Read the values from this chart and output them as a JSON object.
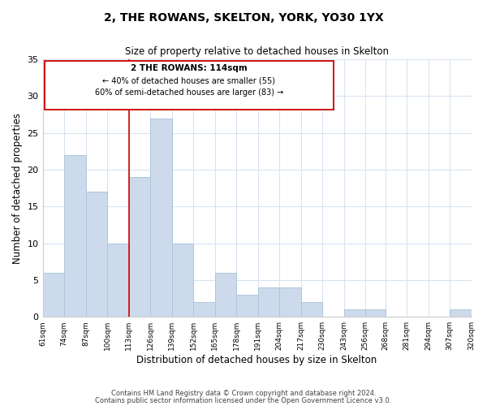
{
  "title": "2, THE ROWANS, SKELTON, YORK, YO30 1YX",
  "subtitle": "Size of property relative to detached houses in Skelton",
  "xlabel": "Distribution of detached houses by size in Skelton",
  "ylabel": "Number of detached properties",
  "bar_edges": [
    61,
    74,
    87,
    100,
    113,
    126,
    139,
    152,
    165,
    178,
    191,
    204,
    217,
    230,
    243,
    256,
    268,
    281,
    294,
    307,
    320
  ],
  "bar_heights": [
    6,
    22,
    17,
    10,
    19,
    27,
    10,
    2,
    6,
    3,
    4,
    4,
    2,
    0,
    1,
    1,
    0,
    0,
    0,
    1
  ],
  "bar_color": "#ccdaeb",
  "bar_edge_color": "#aec6de",
  "vline_x": 113,
  "vline_color": "#cc0000",
  "ylim": [
    0,
    35
  ],
  "yticks": [
    0,
    5,
    10,
    15,
    20,
    25,
    30,
    35
  ],
  "tick_labels": [
    "61sqm",
    "74sqm",
    "87sqm",
    "100sqm",
    "113sqm",
    "126sqm",
    "139sqm",
    "152sqm",
    "165sqm",
    "178sqm",
    "191sqm",
    "204sqm",
    "217sqm",
    "230sqm",
    "243sqm",
    "256sqm",
    "268sqm",
    "281sqm",
    "294sqm",
    "307sqm",
    "320sqm"
  ],
  "annotation_title": "2 THE ROWANS: 114sqm",
  "annotation_line1": "← 40% of detached houses are smaller (55)",
  "annotation_line2": "60% of semi-detached houses are larger (83) →",
  "footer1": "Contains HM Land Registry data © Crown copyright and database right 2024.",
  "footer2": "Contains public sector information licensed under the Open Government Licence v3.0.",
  "background_color": "#ffffff",
  "grid_color": "#d8e4f0"
}
